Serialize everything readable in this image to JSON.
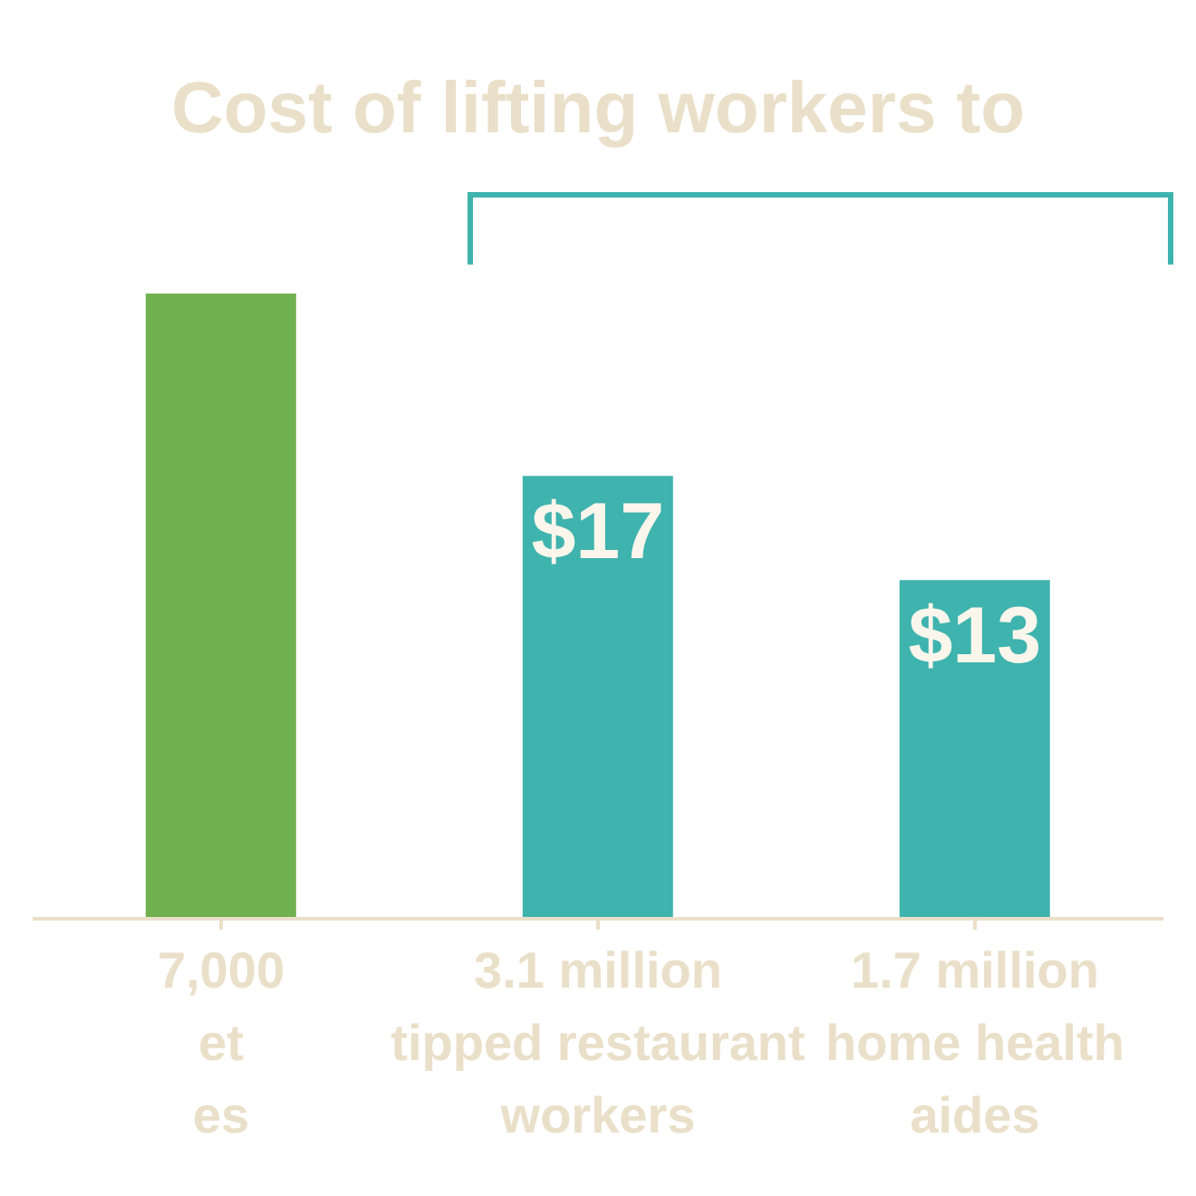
{
  "chart_data": {
    "type": "bar",
    "title": "Cost of lifting workers to",
    "categories": [
      "7,000\net\nes",
      "3.1 million\ntipped restaurant\nworkers",
      "1.7 million\nhome health\naides"
    ],
    "values": [
      24,
      17,
      13
    ],
    "colors": [
      "#6fb04f",
      "#3fb3ae",
      "#3fb3ae"
    ],
    "value_labels": [
      null,
      "$17",
      "$13"
    ],
    "grid": false,
    "legend": false
  }
}
